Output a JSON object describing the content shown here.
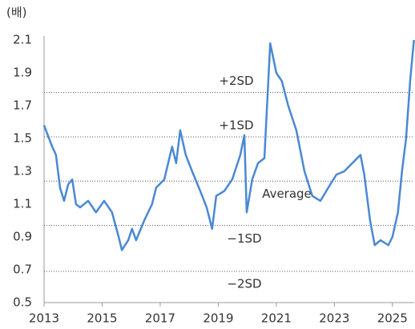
{
  "chart_data": {
    "type": "line",
    "unit_label": "(배)",
    "x": [
      2013.0,
      2013.28,
      2013.41,
      2013.55,
      2013.69,
      2013.83,
      2013.97,
      2014.1,
      2014.24,
      2014.52,
      2014.79,
      2015.07,
      2015.34,
      2015.57,
      2015.68,
      2015.9,
      2016.03,
      2016.17,
      2016.45,
      2016.72,
      2016.86,
      2017.14,
      2017.41,
      2017.55,
      2017.69,
      2017.88,
      2018.1,
      2018.38,
      2018.6,
      2018.79,
      2018.93,
      2019.21,
      2019.48,
      2019.76,
      2019.9,
      2019.98,
      2020.17,
      2020.37,
      2020.59,
      2020.79,
      2021.0,
      2021.19,
      2021.41,
      2021.69,
      2021.97,
      2022.24,
      2022.52,
      2022.79,
      2023.07,
      2023.34,
      2023.62,
      2023.9,
      2024.03,
      2024.23,
      2024.39,
      2024.59,
      2024.86,
      2025.0,
      2025.19,
      2025.33,
      2025.47,
      2025.61,
      2025.74
    ],
    "series": [
      {
        "color": "#4a88d4",
        "values": [
          1.58,
          1.45,
          1.4,
          1.2,
          1.12,
          1.22,
          1.25,
          1.1,
          1.08,
          1.12,
          1.05,
          1.12,
          1.05,
          0.9,
          0.82,
          0.88,
          0.95,
          0.88,
          1.0,
          1.1,
          1.2,
          1.25,
          1.45,
          1.35,
          1.55,
          1.4,
          1.3,
          1.18,
          1.08,
          0.95,
          1.15,
          1.18,
          1.25,
          1.4,
          1.52,
          1.05,
          1.25,
          1.35,
          1.38,
          2.08,
          1.9,
          1.85,
          1.7,
          1.55,
          1.3,
          1.15,
          1.12,
          1.2,
          1.28,
          1.3,
          1.35,
          1.4,
          1.28,
          1.0,
          0.85,
          0.88,
          0.85,
          0.9,
          1.05,
          1.3,
          1.5,
          1.85,
          2.1
        ]
      }
    ],
    "reference_lines": [
      {
        "label": "+2SD",
        "value": 1.78
      },
      {
        "label": "+1SD",
        "value": 1.51
      },
      {
        "label": "Average",
        "value": 1.24
      },
      {
        "label": "−1SD",
        "value": 0.97
      },
      {
        "label": "−2SD",
        "value": 0.69
      }
    ],
    "xlim": [
      2013,
      2025.75
    ],
    "xticks": [
      2013,
      2015,
      2017,
      2019,
      2021,
      2023,
      2025
    ],
    "ylim": [
      0.5,
      2.1
    ],
    "yticks": [
      0.5,
      0.7,
      0.9,
      1.1,
      1.3,
      1.5,
      1.7,
      1.9,
      2.1
    ]
  }
}
